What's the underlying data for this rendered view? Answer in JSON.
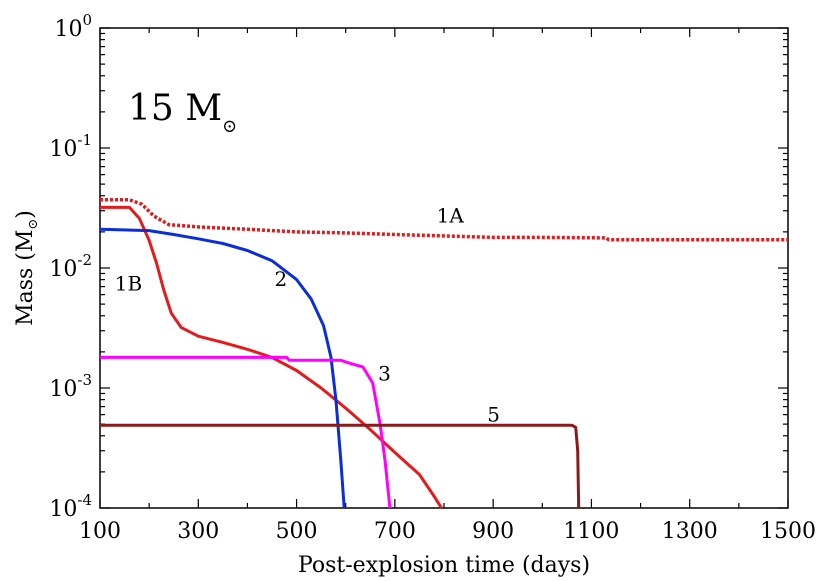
{
  "chart_data": {
    "type": "line",
    "title_prefix": "15 M",
    "title_symbol": "⊙",
    "xlabel": "Post-explosion time (days)",
    "ylabel_prefix": "Mass (M",
    "ylabel_symbol": "⊙",
    "ylabel_suffix": ")",
    "xlim": [
      100,
      1500
    ],
    "ylim_log10": [
      -4,
      0
    ],
    "yscale": "log",
    "x_ticks": [
      "100",
      "300",
      "500",
      "700",
      "900",
      "1100",
      "1300",
      "1500"
    ],
    "x_tick_values": [
      100,
      300,
      500,
      700,
      900,
      1100,
      1300,
      1500
    ],
    "y_ticks": [
      {
        "base": "10",
        "exp": "-4",
        "value": 0.0001
      },
      {
        "base": "10",
        "exp": "-3",
        "value": 0.001
      },
      {
        "base": "10",
        "exp": "-2",
        "value": 0.01
      },
      {
        "base": "10",
        "exp": "-1",
        "value": 0.1
      },
      {
        "base": "10",
        "exp": "0",
        "value": 1
      }
    ],
    "series": [
      {
        "name": "1A",
        "label": "1A",
        "color": "#e41a1c",
        "dashed": true,
        "label_at": [
          785,
          0.024
        ],
        "points": [
          [
            100,
            0.037
          ],
          [
            160,
            0.037
          ],
          [
            185,
            0.034
          ],
          [
            210,
            0.027
          ],
          [
            240,
            0.023
          ],
          [
            300,
            0.022
          ],
          [
            400,
            0.021
          ],
          [
            500,
            0.02
          ],
          [
            600,
            0.0196
          ],
          [
            700,
            0.019
          ],
          [
            800,
            0.0185
          ],
          [
            900,
            0.018
          ],
          [
            1000,
            0.018
          ],
          [
            1130,
            0.0178
          ],
          [
            1135,
            0.0172
          ],
          [
            1300,
            0.0172
          ],
          [
            1500,
            0.0172
          ]
        ]
      },
      {
        "name": "1B",
        "label": "1B",
        "color": "#e41a1c",
        "dashed": false,
        "label_at": [
          130,
          0.0065
        ],
        "points": [
          [
            100,
            0.032
          ],
          [
            160,
            0.032
          ],
          [
            180,
            0.026
          ],
          [
            200,
            0.017
          ],
          [
            215,
            0.011
          ],
          [
            230,
            0.0065
          ],
          [
            245,
            0.0042
          ],
          [
            265,
            0.0032
          ],
          [
            300,
            0.0027
          ],
          [
            350,
            0.0024
          ],
          [
            400,
            0.0021
          ],
          [
            450,
            0.0018
          ],
          [
            500,
            0.0014
          ],
          [
            550,
            0.001
          ],
          [
            600,
            0.00068
          ],
          [
            650,
            0.00045
          ],
          [
            700,
            0.00029
          ],
          [
            750,
            0.00019
          ],
          [
            780,
            0.000125
          ],
          [
            795,
            0.0001
          ]
        ]
      },
      {
        "name": "2",
        "label": "2",
        "color": "#0a2ed9",
        "dashed": false,
        "label_at": [
          455,
          0.0071
        ],
        "points": [
          [
            100,
            0.021
          ],
          [
            200,
            0.0205
          ],
          [
            250,
            0.019
          ],
          [
            300,
            0.0175
          ],
          [
            350,
            0.016
          ],
          [
            400,
            0.014
          ],
          [
            450,
            0.0115
          ],
          [
            500,
            0.008
          ],
          [
            530,
            0.0055
          ],
          [
            555,
            0.0033
          ],
          [
            570,
            0.0018
          ],
          [
            580,
            0.0008
          ],
          [
            590,
            0.00025
          ],
          [
            597,
            0.0001
          ]
        ]
      },
      {
        "name": "3",
        "label": "3",
        "color": "#ff00ff",
        "dashed": false,
        "label_at": [
          666,
          0.00115
        ],
        "points": [
          [
            100,
            0.0018
          ],
          [
            480,
            0.0018
          ],
          [
            485,
            0.0017
          ],
          [
            590,
            0.0017
          ],
          [
            610,
            0.0016
          ],
          [
            635,
            0.0015
          ],
          [
            655,
            0.0011
          ],
          [
            670,
            0.0005
          ],
          [
            680,
            0.00025
          ],
          [
            690,
            0.0001
          ]
        ]
      },
      {
        "name": "5",
        "label": "5",
        "color": "#8b1a1a",
        "dashed": false,
        "label_at": [
          888,
          0.000525
        ],
        "points": [
          [
            100,
            0.00049
          ],
          [
            1060,
            0.00049
          ],
          [
            1068,
            0.00047
          ],
          [
            1072,
            0.0003
          ],
          [
            1074,
            0.0001
          ]
        ]
      }
    ]
  }
}
